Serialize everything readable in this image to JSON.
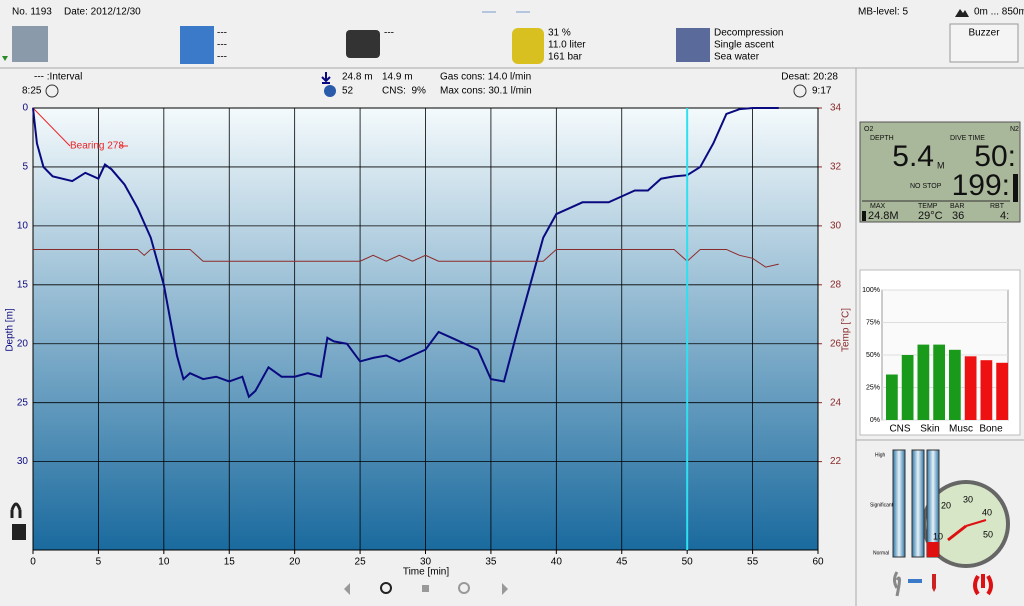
{
  "header": {
    "number": "No. 1193",
    "date": "Date: 2012/12/30",
    "mb_level": "MB-level: 5",
    "altitude": "0m ... 850m"
  },
  "toolbar": {
    "weather": [
      "---",
      "---",
      "---"
    ],
    "camera": "---",
    "gas": [
      "31 %",
      "11.0 liter",
      "161 bar"
    ],
    "dive_type": [
      "Decompression",
      "Single ascent",
      "Sea water"
    ],
    "buzzer": "Buzzer"
  },
  "summary": {
    "interval": "--- :Interval",
    "interval_time": "8:25",
    "max_depth": "24.8 m",
    "avg_depth": "14.9 m",
    "oxygen": "52",
    "cns": "CNS:  9%",
    "gas_cons": "Gas cons: 14.0 l/min",
    "max_cons": "Max cons: 30.1 l/min",
    "desat": "Desat: 20:28",
    "surface_time": "9:17"
  },
  "dive_chart": {
    "type": "line",
    "x_label": "Time [min]",
    "y_label": "Depth [m]",
    "y2_label": "Temp [°C]",
    "annotation": "Bearing 278",
    "cursor": 50,
    "xlim": [
      0,
      60
    ],
    "xticks": [
      0,
      5,
      10,
      15,
      20,
      25,
      30,
      35,
      40,
      45,
      50,
      55,
      60
    ],
    "ylim": [
      0,
      37.5
    ],
    "yticks": [
      0,
      5,
      10,
      15,
      20,
      25,
      30
    ],
    "y2lim": [
      34,
      19
    ],
    "y2ticks": [
      22,
      24,
      26,
      28,
      30,
      32,
      34
    ],
    "grid": true,
    "series": [
      {
        "name": "Depth",
        "color": "#0a0a80",
        "x": [
          0,
          0.3,
          0.8,
          1.5,
          3,
          4,
          5,
          5.5,
          6,
          7,
          8,
          9,
          10,
          10.5,
          11,
          11.5,
          12,
          13,
          14,
          15,
          16,
          16.5,
          17,
          18,
          19,
          20,
          21,
          22,
          22.5,
          23,
          24,
          25,
          26,
          27,
          28,
          29,
          30,
          31,
          32,
          33,
          34,
          35,
          36,
          37,
          38,
          39,
          40,
          41,
          42,
          43,
          44,
          45,
          46,
          47,
          48,
          49,
          50,
          51,
          52,
          53,
          54,
          55,
          57
        ],
        "values": [
          0,
          3,
          5,
          5.8,
          6.2,
          5.5,
          6,
          4.8,
          5.2,
          6.5,
          8.5,
          11,
          15,
          18,
          21,
          23,
          22.5,
          23,
          22.8,
          23.2,
          22.8,
          24.5,
          24,
          22,
          22.8,
          22.8,
          22.5,
          22.8,
          19.5,
          19.8,
          20,
          21.5,
          21.2,
          21,
          21.5,
          21,
          20.5,
          19,
          19.5,
          20,
          20.5,
          23,
          23.2,
          19,
          15,
          11,
          9,
          8.5,
          8,
          8,
          8,
          7.5,
          7,
          7,
          6,
          5.8,
          5.7,
          5,
          3,
          0.5,
          0.1,
          0,
          0
        ]
      },
      {
        "name": "Temp",
        "color": "#8b2a2a",
        "axis": "y2",
        "x": [
          0,
          8,
          8.5,
          9,
          12,
          13,
          25,
          26,
          27,
          28,
          29,
          30,
          31,
          39,
          40,
          49,
          50,
          51,
          53,
          54,
          55,
          56,
          57
        ],
        "values": [
          29.2,
          29.2,
          29,
          29.2,
          29.2,
          28.8,
          28.8,
          29,
          28.8,
          29,
          28.8,
          29,
          28.8,
          28.8,
          29.2,
          29.2,
          28.8,
          29.2,
          29.2,
          29,
          28.9,
          28.6,
          28.7
        ]
      }
    ]
  },
  "computer": {
    "o2": "O2",
    "n2": "N2",
    "depth_label": "DEPTH",
    "depth": "5.4",
    "depth_unit": "M",
    "time_label": "DIVE TIME",
    "time": "50:",
    "stop_label": "NO STOP",
    "stop": "199:",
    "max_label": "MAX",
    "temp_label": "TEMP",
    "bar_label": "BAR",
    "rbt_label": "RBT",
    "max": "24.8M",
    "temp": "29°C",
    "bar": "36",
    "rbt": "4:"
  },
  "tissues": {
    "type": "bar",
    "labels": [
      "CNS",
      "Skin",
      "Musc",
      "Bone"
    ],
    "values": [
      35,
      50,
      58,
      58,
      54,
      49,
      46,
      44
    ],
    "colors": [
      "#1a9a1a",
      "#1a9a1a",
      "#1a9a1a",
      "#1a9a1a",
      "#1a9a1a",
      "#ee1111",
      "#ee1111",
      "#ee1111"
    ],
    "ylim": [
      0,
      100
    ],
    "yticks": [
      {
        "value": 0,
        "label": "0%"
      },
      {
        "value": 25,
        "label": "25%"
      },
      {
        "value": 50,
        "label": "50%"
      },
      {
        "value": 75,
        "label": "75%"
      },
      {
        "value": 100,
        "label": "100%"
      }
    ]
  },
  "gauges": {
    "levels": [
      "High",
      "Significant",
      "Normal"
    ],
    "ylim": [
      0,
      100
    ],
    "values": [
      0,
      0,
      14
    ],
    "dial_ticks": [
      10,
      20,
      30,
      40,
      50
    ]
  }
}
